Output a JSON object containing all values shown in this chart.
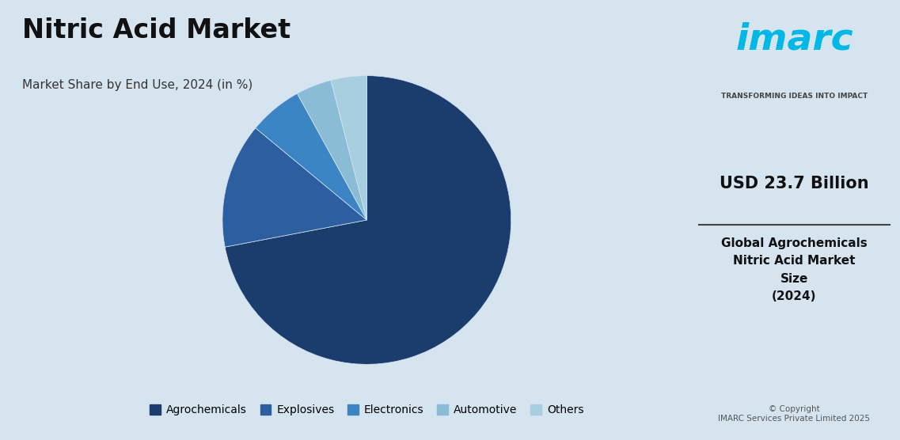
{
  "title": "Nitric Acid Market",
  "subtitle": "Market Share by End Use, 2024 (in %)",
  "background_color": "#d6e4f0",
  "right_panel_color": "#eef3f8",
  "pie_values": [
    72,
    14,
    6,
    4,
    4
  ],
  "pie_colors": [
    "#1b3d6e",
    "#2d5fa0",
    "#3b85c5",
    "#8bbcd6",
    "#a8cfe0"
  ],
  "legend_labels": [
    "Agrochemicals",
    "Explosives",
    "Electronics",
    "Automotive",
    "Others"
  ],
  "title_fontsize": 24,
  "subtitle_fontsize": 11,
  "right_value": "USD 23.7 Billion",
  "right_desc": "Global Agrochemicals\nNitric Acid Market\nSize\n(2024)",
  "copyright": "© Copyright\nIMARC Services Private Limited 2025",
  "imarc_label": "imarc",
  "imarc_tagline": "TRANSFORMING IDEAS INTO IMPACT",
  "panel_split": 0.765
}
